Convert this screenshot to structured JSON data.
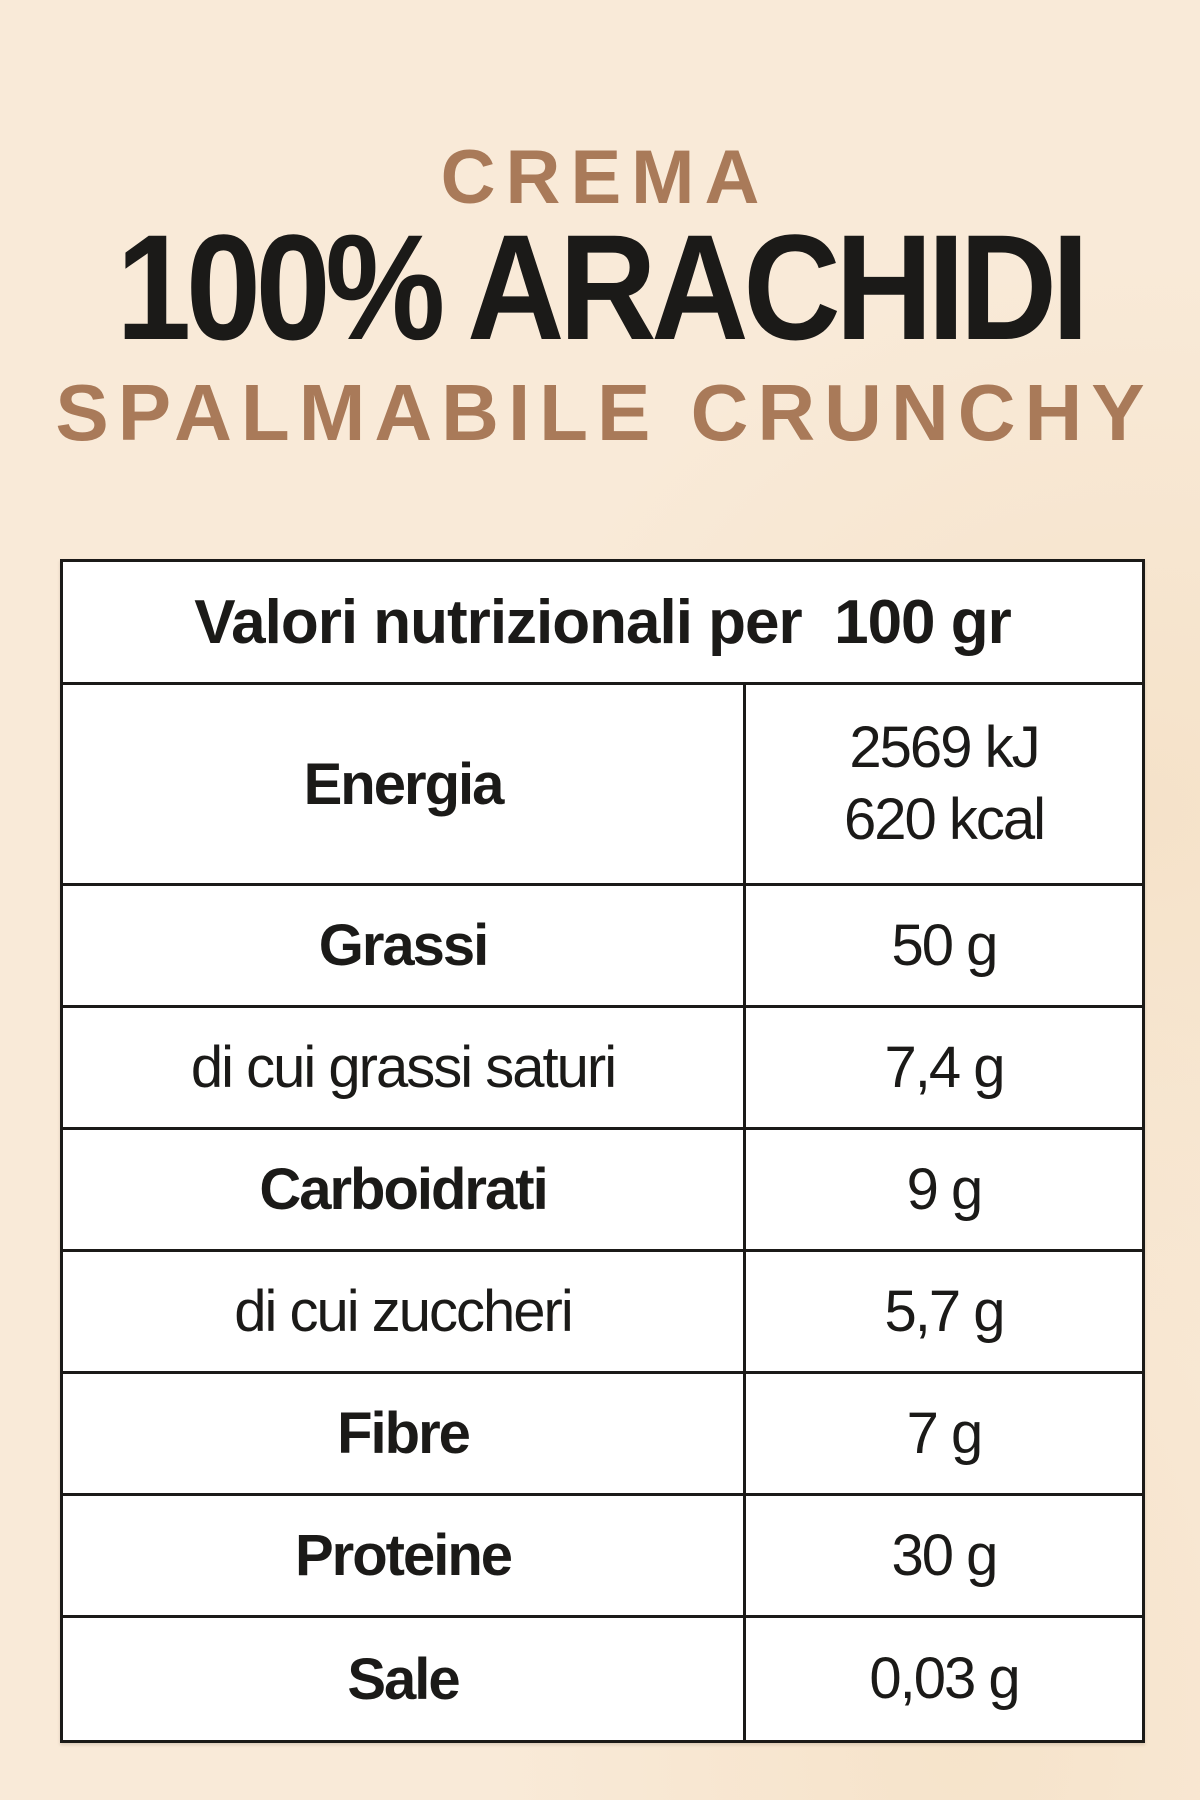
{
  "title": {
    "line1": "CREMA",
    "line2": "100% ARACHIDI",
    "line3": "SPALMABILE CRUNCHY"
  },
  "colors": {
    "background": "#f9ead8",
    "accent_brown": "#a97a59",
    "text_dark": "#1b1a18",
    "table_bg": "#ffffff"
  },
  "table": {
    "header": "Valori nutrizionali per  100 gr",
    "rows": [
      {
        "label": "Energia",
        "bold": true,
        "values": [
          "2569 kJ",
          "620 kcal"
        ]
      },
      {
        "label": "Grassi",
        "bold": true,
        "values": [
          "50 g"
        ]
      },
      {
        "label": "di cui grassi saturi",
        "bold": false,
        "values": [
          "7,4 g"
        ]
      },
      {
        "label": "Carboidrati",
        "bold": true,
        "values": [
          "9 g"
        ]
      },
      {
        "label": "di cui zuccheri",
        "bold": false,
        "values": [
          "5,7 g"
        ]
      },
      {
        "label": "Fibre",
        "bold": true,
        "values": [
          "7 g"
        ]
      },
      {
        "label": "Proteine",
        "bold": true,
        "values": [
          "30 g"
        ]
      },
      {
        "label": "Sale",
        "bold": true,
        "values": [
          "0,03 g"
        ]
      }
    ]
  }
}
